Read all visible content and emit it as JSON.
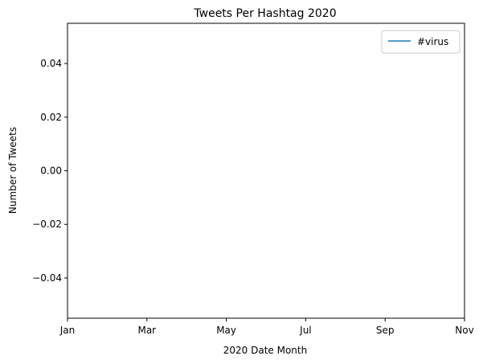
{
  "chart_data": {
    "type": "line",
    "title": "Tweets Per Hashtag 2020",
    "xlabel": "2020 Date Month",
    "ylabel": "Number of Tweets",
    "x_ticks": [
      "Jan",
      "Mar",
      "May",
      "Jul",
      "Sep",
      "Nov"
    ],
    "y_ticks": [
      0.04,
      0.02,
      0.0,
      -0.02,
      -0.04
    ],
    "y_tick_labels": [
      "0.04",
      "0.02",
      "0.00",
      "−0.02",
      "−0.04"
    ],
    "ylim": [
      -0.055,
      0.055
    ],
    "grid": false,
    "legend_position": "top-right",
    "series": [
      {
        "name": "#virus",
        "color": "#1f77b4",
        "x": [],
        "y": []
      }
    ]
  }
}
